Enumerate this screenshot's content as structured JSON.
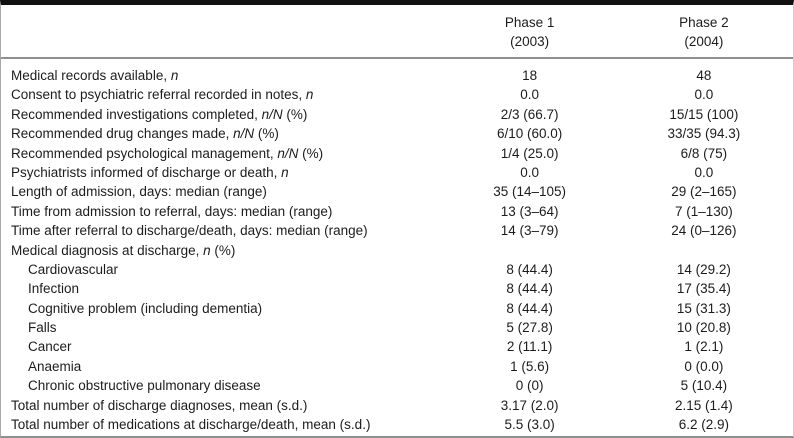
{
  "table": {
    "colors": {
      "top_border": "#111111",
      "rule_gray": "#8f8f8f",
      "text": "#1c1c1c"
    },
    "columns": [
      {
        "line1": "Phase 1",
        "line2": "(2003)"
      },
      {
        "line1": "Phase 2",
        "line2": "(2004)"
      }
    ],
    "rows": [
      {
        "label_pre": "Medical records available, ",
        "label_italic": "n",
        "label_post": "",
        "indent": false,
        "phase1": "18",
        "phase2": "48"
      },
      {
        "label_pre": "Consent to psychiatric referral recorded in notes, ",
        "label_italic": "n",
        "label_post": "",
        "indent": false,
        "phase1": "0.0",
        "phase2": "0.0"
      },
      {
        "label_pre": "Recommended investigations completed, ",
        "label_italic": "n/N",
        "label_post": " (%)",
        "indent": false,
        "phase1": "2/3 (66.7)",
        "phase2": "15/15 (100)"
      },
      {
        "label_pre": "Recommended drug changes made, ",
        "label_italic": "n/N",
        "label_post": " (%)",
        "indent": false,
        "phase1": "6/10 (60.0)",
        "phase2": "33/35 (94.3)"
      },
      {
        "label_pre": "Recommended psychological management, ",
        "label_italic": "n/N",
        "label_post": " (%)",
        "indent": false,
        "phase1": "1/4 (25.0)",
        "phase2": "6/8 (75)"
      },
      {
        "label_pre": "Psychiatrists informed of discharge or death, ",
        "label_italic": "n",
        "label_post": "",
        "indent": false,
        "phase1": "0.0",
        "phase2": "0.0"
      },
      {
        "label_pre": "Length of admission, days: median (range)",
        "label_italic": "",
        "label_post": "",
        "indent": false,
        "phase1": "35 (14–105)",
        "phase2": "29 (2–165)"
      },
      {
        "label_pre": "Time from admission to referral, days: median (range)",
        "label_italic": "",
        "label_post": "",
        "indent": false,
        "phase1": "13 (3–64)",
        "phase2": "7 (1–130)"
      },
      {
        "label_pre": "Time after referral to discharge/death, days: median (range)",
        "label_italic": "",
        "label_post": "",
        "indent": false,
        "phase1": "14 (3–79)",
        "phase2": "24 (0–126)"
      },
      {
        "label_pre": "Medical diagnosis at discharge, ",
        "label_italic": "n",
        "label_post": " (%)",
        "indent": false,
        "phase1": "",
        "phase2": ""
      },
      {
        "label_pre": "Cardiovascular",
        "label_italic": "",
        "label_post": "",
        "indent": true,
        "phase1": "8 (44.4)",
        "phase2": "14 (29.2)"
      },
      {
        "label_pre": "Infection",
        "label_italic": "",
        "label_post": "",
        "indent": true,
        "phase1": "8 (44.4)",
        "phase2": "17 (35.4)"
      },
      {
        "label_pre": "Cognitive problem (including dementia)",
        "label_italic": "",
        "label_post": "",
        "indent": true,
        "phase1": "8 (44.4)",
        "phase2": "15 (31.3)"
      },
      {
        "label_pre": "Falls",
        "label_italic": "",
        "label_post": "",
        "indent": true,
        "phase1": "5 (27.8)",
        "phase2": "10 (20.8)"
      },
      {
        "label_pre": "Cancer",
        "label_italic": "",
        "label_post": "",
        "indent": true,
        "phase1": "2 (11.1)",
        "phase2": "1 (2.1)"
      },
      {
        "label_pre": "Anaemia",
        "label_italic": "",
        "label_post": "",
        "indent": true,
        "phase1": "1 (5.6)",
        "phase2": "0 (0.0)"
      },
      {
        "label_pre": "Chronic obstructive pulmonary disease",
        "label_italic": "",
        "label_post": "",
        "indent": true,
        "phase1": "0 (0)",
        "phase2": "5 (10.4)"
      },
      {
        "label_pre": "Total number of discharge diagnoses, mean (s.d.)",
        "label_italic": "",
        "label_post": "",
        "indent": false,
        "phase1": "3.17 (2.0)",
        "phase2": "2.15 (1.4)"
      },
      {
        "label_pre": "Total number of medications at discharge/death, mean (s.d.)",
        "label_italic": "",
        "label_post": "",
        "indent": false,
        "phase1": "5.5 (3.0)",
        "phase2": "6.2 (2.9)"
      }
    ]
  }
}
